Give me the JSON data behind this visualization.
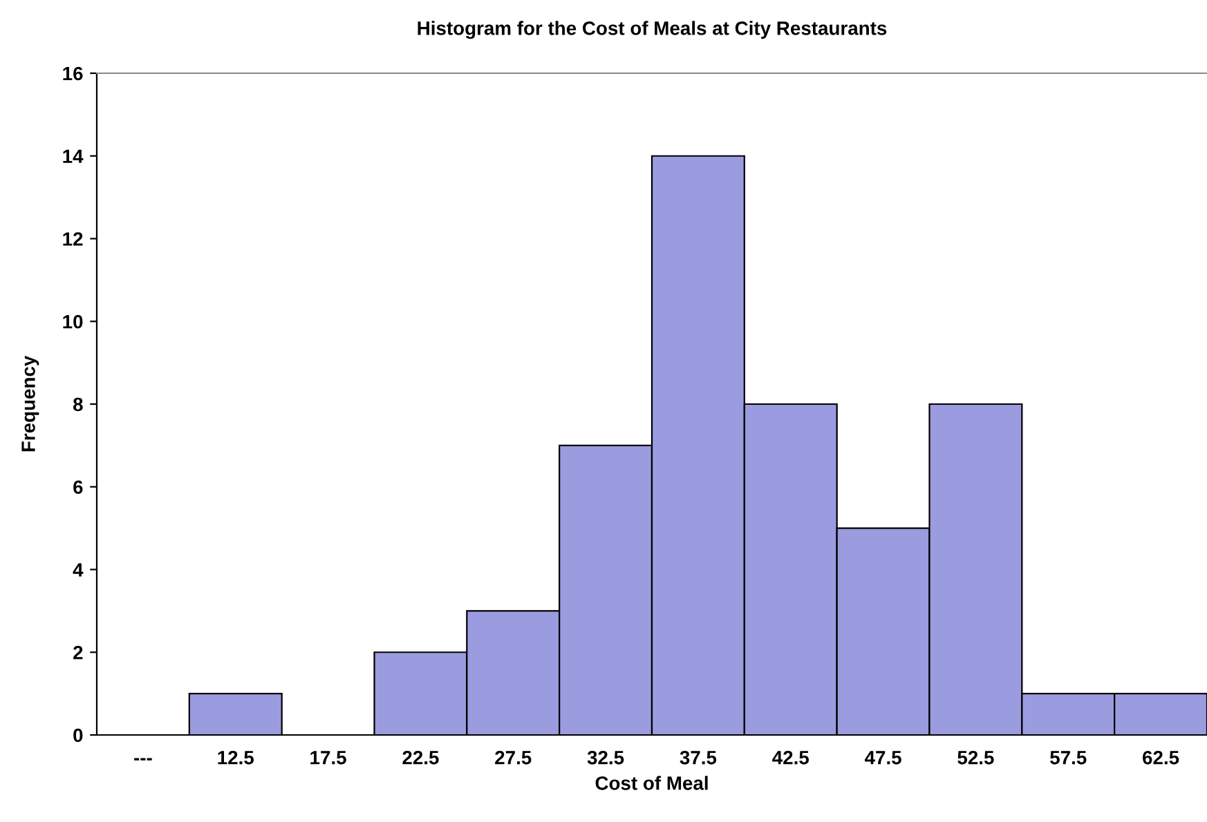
{
  "chart_data": {
    "type": "bar",
    "title": "Histogram for the Cost of Meals at City Restaurants",
    "xlabel": "Cost of Meal",
    "ylabel": "Frequency",
    "categories": [
      "---",
      "12.5",
      "17.5",
      "22.5",
      "27.5",
      "32.5",
      "37.5",
      "42.5",
      "47.5",
      "52.5",
      "57.5",
      "62.5"
    ],
    "values": [
      0,
      1,
      0,
      2,
      3,
      7,
      14,
      8,
      5,
      8,
      1,
      1
    ],
    "color": "#9b9be0",
    "ylim": [
      0,
      16
    ],
    "yticks": [
      0,
      2,
      4,
      6,
      8,
      10,
      12,
      14,
      16
    ],
    "grid": false
  }
}
